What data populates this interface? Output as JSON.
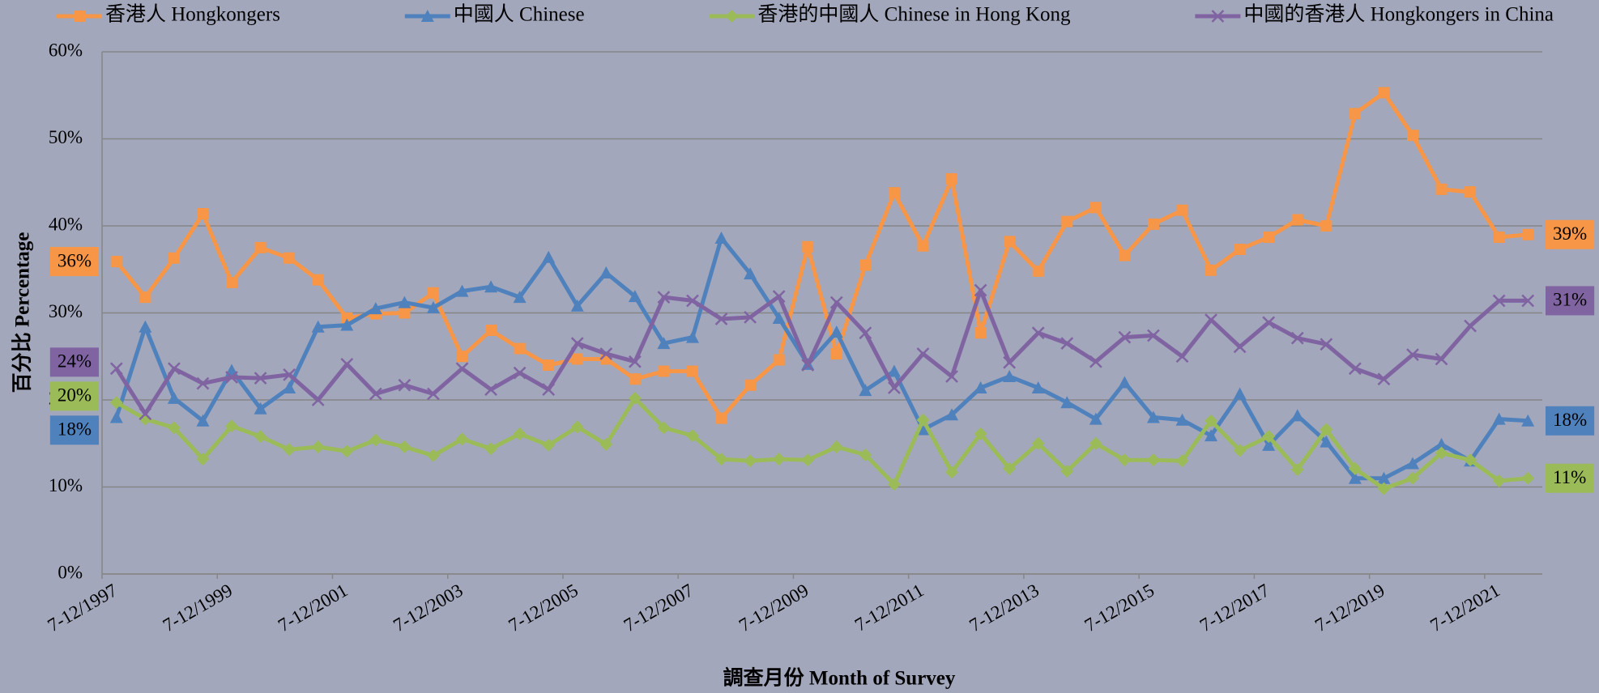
{
  "chart_data": {
    "type": "line",
    "x_label": "調查月份 Month of Survey",
    "y_label": "百分比 Percentage",
    "categories": [
      "7-12/1997",
      null,
      null,
      null,
      "7-12/1999",
      null,
      null,
      null,
      "7-12/2001",
      null,
      null,
      null,
      "7-12/2003",
      null,
      null,
      null,
      "7-12/2005",
      null,
      null,
      null,
      "7-12/2007",
      null,
      null,
      null,
      "7-12/2009",
      null,
      null,
      null,
      "7-12/2011",
      null,
      null,
      null,
      "7-12/2013",
      null,
      null,
      null,
      "7-12/2015",
      null,
      null,
      null,
      "7-12/2017",
      null,
      null,
      null,
      "7-12/2019",
      null,
      null,
      null,
      "7-12/2021",
      null
    ],
    "ylim": [
      0,
      60
    ],
    "yticks": [
      {
        "value": 0,
        "label": "0%"
      },
      {
        "value": 10,
        "label": "10%"
      },
      {
        "value": 20,
        "label": "20%"
      },
      {
        "value": 30,
        "label": "30%"
      },
      {
        "value": 40,
        "label": "40%"
      },
      {
        "value": 50,
        "label": "50%"
      },
      {
        "value": 60,
        "label": "60%"
      }
    ],
    "grid": true,
    "legend": "top",
    "series": [
      {
        "name": "香港人 Hongkongers",
        "color": "#f79646",
        "marker": "square",
        "values": [
          35.9,
          31.8,
          36.3,
          41.4,
          33.5,
          37.5,
          36.3,
          33.8,
          29.4,
          29.9,
          30.0,
          32.3,
          25.0,
          28.0,
          25.9,
          24.0,
          24.7,
          24.7,
          22.4,
          23.3,
          23.3,
          17.9,
          21.7,
          24.6,
          37.6,
          25.3,
          35.5,
          43.8,
          37.7,
          45.4,
          27.7,
          38.2,
          34.8,
          40.5,
          42.1,
          36.6,
          40.2,
          41.8,
          34.9,
          37.3,
          38.7,
          40.7,
          40.0,
          52.9,
          55.3,
          50.4,
          44.2,
          43.9,
          38.7,
          39.0
        ],
        "value_labels": [
          "36%",
          null,
          null,
          null,
          null,
          null,
          null,
          null,
          null,
          null,
          null,
          null,
          null,
          null,
          null,
          null,
          null,
          null,
          null,
          null,
          null,
          null,
          null,
          null,
          null,
          null,
          null,
          null,
          null,
          null,
          null,
          null,
          null,
          null,
          null,
          null,
          null,
          null,
          null,
          null,
          null,
          null,
          null,
          null,
          null,
          null,
          null,
          null,
          null,
          "39%"
        ]
      },
      {
        "name": "中國人 Chinese",
        "color": "#4f81bd",
        "marker": "triangle",
        "values": [
          18.0,
          28.4,
          20.2,
          17.6,
          23.4,
          19.0,
          21.4,
          28.4,
          28.6,
          30.5,
          31.2,
          30.6,
          32.5,
          33.0,
          31.8,
          36.4,
          30.8,
          34.6,
          31.9,
          26.5,
          27.2,
          38.6,
          34.5,
          29.4,
          24.1,
          27.8,
          21.1,
          23.3,
          16.6,
          18.3,
          21.4,
          22.7,
          21.4,
          19.7,
          17.8,
          22.0,
          18.0,
          17.7,
          15.9,
          20.7,
          14.8,
          18.2,
          15.2,
          11.0,
          11.0,
          12.7,
          14.9,
          13.0,
          17.8,
          17.6
        ],
        "value_labels": [
          "18%",
          null,
          null,
          null,
          null,
          null,
          null,
          null,
          null,
          null,
          null,
          null,
          null,
          null,
          null,
          null,
          null,
          null,
          null,
          null,
          null,
          null,
          null,
          null,
          null,
          null,
          null,
          null,
          null,
          null,
          null,
          null,
          null,
          null,
          null,
          null,
          null,
          null,
          null,
          null,
          null,
          null,
          null,
          null,
          null,
          null,
          null,
          null,
          null,
          "18%"
        ]
      },
      {
        "name": "香港的中國人 Chinese in Hong Kong",
        "color": "#9bbb59",
        "marker": "diamond",
        "values": [
          19.7,
          17.8,
          16.8,
          13.2,
          17.0,
          15.8,
          14.3,
          14.6,
          14.1,
          15.4,
          14.6,
          13.6,
          15.5,
          14.4,
          16.1,
          14.8,
          16.9,
          14.9,
          20.2,
          16.8,
          15.9,
          13.2,
          13.0,
          13.2,
          13.1,
          14.6,
          13.7,
          10.3,
          17.7,
          11.7,
          16.1,
          12.1,
          15.0,
          11.8,
          15.0,
          13.1,
          13.1,
          13.0,
          17.6,
          14.2,
          15.8,
          12.0,
          16.6,
          12.1,
          9.8,
          11.0,
          13.9,
          13.1,
          10.7,
          11.0
        ],
        "value_labels": [
          "20%",
          null,
          null,
          null,
          null,
          null,
          null,
          null,
          null,
          null,
          null,
          null,
          null,
          null,
          null,
          null,
          null,
          null,
          null,
          null,
          null,
          null,
          null,
          null,
          null,
          null,
          null,
          null,
          null,
          null,
          null,
          null,
          null,
          null,
          null,
          null,
          null,
          null,
          null,
          null,
          null,
          null,
          null,
          null,
          null,
          null,
          null,
          null,
          null,
          "11%"
        ]
      },
      {
        "name": "中國的香港人 Hongkongers in China",
        "color": "#8064a2",
        "marker": "x",
        "values": [
          23.6,
          18.4,
          23.6,
          21.9,
          22.6,
          22.5,
          22.9,
          20.0,
          24.1,
          20.7,
          21.7,
          20.7,
          23.6,
          21.2,
          23.1,
          21.2,
          26.5,
          25.3,
          24.4,
          31.8,
          31.4,
          29.3,
          29.5,
          31.9,
          24.0,
          31.2,
          27.7,
          21.4,
          25.3,
          22.7,
          32.6,
          24.3,
          27.7,
          26.5,
          24.4,
          27.2,
          27.4,
          25.0,
          29.2,
          26.1,
          28.9,
          27.1,
          26.4,
          23.6,
          22.4,
          25.2,
          24.7,
          28.5,
          31.4,
          31.4
        ],
        "value_labels": [
          "24%",
          null,
          null,
          null,
          null,
          null,
          null,
          null,
          null,
          null,
          null,
          null,
          null,
          null,
          null,
          null,
          null,
          null,
          null,
          null,
          null,
          null,
          null,
          null,
          null,
          null,
          null,
          null,
          null,
          null,
          null,
          null,
          null,
          null,
          null,
          null,
          null,
          null,
          null,
          null,
          null,
          null,
          null,
          null,
          null,
          null,
          null,
          null,
          null,
          "31%"
        ]
      }
    ]
  }
}
